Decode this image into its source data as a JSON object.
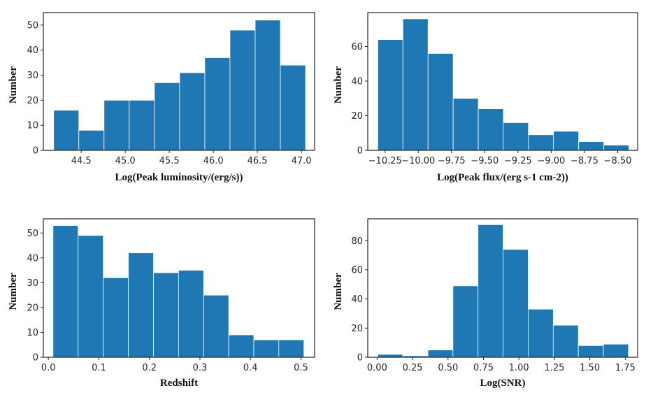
{
  "chart_data": [
    {
      "type": "bar",
      "title": "",
      "xlabel": "Log(Peak luminosity/(erg/s))",
      "ylabel": "Number",
      "color": "#1f77b4",
      "bin_centers": [
        44.33,
        44.616,
        44.902,
        45.188,
        45.474,
        45.76,
        46.046,
        46.332,
        46.618,
        46.904
      ],
      "bin_width": 0.286,
      "values": [
        16,
        8,
        20,
        20,
        27,
        31,
        37,
        48,
        52,
        34
      ],
      "xlim": [
        44.07,
        47.15
      ],
      "ylim": [
        0,
        55
      ],
      "xticks": [
        44.5,
        45.0,
        45.5,
        46.0,
        46.5,
        47.0
      ],
      "xtick_labels": [
        "44.5",
        "45.0",
        "45.5",
        "46.0",
        "46.5",
        "47.0"
      ],
      "yticks": [
        0,
        10,
        20,
        30,
        40,
        50
      ],
      "ytick_labels": [
        "0",
        "10",
        "20",
        "30",
        "40",
        "50"
      ],
      "grid": false
    },
    {
      "type": "bar",
      "title": "",
      "xlabel": "Log(Peak flux/(erg s-1 cm-2))",
      "ylabel": "Number",
      "color": "#1f77b4",
      "bin_centers": [
        -10.21,
        -10.021,
        -9.832,
        -9.643,
        -9.454,
        -9.266,
        -9.077,
        -8.888,
        -8.699,
        -8.51
      ],
      "bin_width": 0.189,
      "values": [
        64,
        76,
        56,
        30,
        24,
        16,
        9,
        11,
        5,
        3
      ],
      "xlim": [
        -10.38,
        -8.35
      ],
      "ylim": [
        0,
        79.6
      ],
      "xticks": [
        -10.25,
        -10.0,
        -9.75,
        -9.5,
        -9.25,
        -9.0,
        -8.75,
        -8.5
      ],
      "xtick_labels": [
        "−10.25",
        "−10.00",
        "−9.75",
        "−9.50",
        "−9.25",
        "−9.00",
        "−8.75",
        "−8.50"
      ],
      "yticks": [
        0,
        20,
        40,
        60
      ],
      "ytick_labels": [
        "0",
        "20",
        "40",
        "60"
      ],
      "grid": false
    },
    {
      "type": "bar",
      "title": "",
      "xlabel": "Redshift",
      "ylabel": "Number",
      "color": "#1f77b4",
      "bin_centers": [
        0.034,
        0.0837,
        0.1334,
        0.1831,
        0.2328,
        0.2824,
        0.3321,
        0.3818,
        0.4315,
        0.481
      ],
      "bin_width": 0.0497,
      "values": [
        53,
        49,
        32,
        42,
        34,
        35,
        25,
        9,
        7,
        7
      ],
      "xlim": [
        -0.01,
        0.527
      ],
      "ylim": [
        0,
        55.7
      ],
      "xticks": [
        0.0,
        0.1,
        0.2,
        0.3,
        0.4,
        0.5
      ],
      "xtick_labels": [
        "0.0",
        "0.1",
        "0.2",
        "0.3",
        "0.4",
        "0.5"
      ],
      "yticks": [
        0,
        10,
        20,
        30,
        40,
        50
      ],
      "ytick_labels": [
        "0",
        "10",
        "20",
        "30",
        "40",
        "50"
      ],
      "grid": false
    },
    {
      "type": "bar",
      "title": "",
      "xlabel": "Log(SNR)",
      "ylabel": "Number",
      "color": "#1f77b4",
      "bin_centers": [
        0.093,
        0.2698,
        0.4466,
        0.6233,
        0.8001,
        0.9769,
        1.1537,
        1.3304,
        1.5072,
        1.684
      ],
      "bin_width": 0.177,
      "values": [
        2,
        1,
        5,
        49,
        91,
        74,
        33,
        22,
        8,
        9
      ],
      "xlim": [
        -0.066,
        1.837
      ],
      "ylim": [
        0,
        95
      ],
      "xticks": [
        0.0,
        0.25,
        0.5,
        0.75,
        1.0,
        1.25,
        1.5,
        1.75
      ],
      "xtick_labels": [
        "0.00",
        "0.25",
        "0.50",
        "0.75",
        "1.00",
        "1.25",
        "1.50",
        "1.75"
      ],
      "yticks": [
        0,
        20,
        40,
        60,
        80
      ],
      "ytick_labels": [
        "0",
        "20",
        "40",
        "60",
        "80"
      ],
      "grid": false
    }
  ]
}
